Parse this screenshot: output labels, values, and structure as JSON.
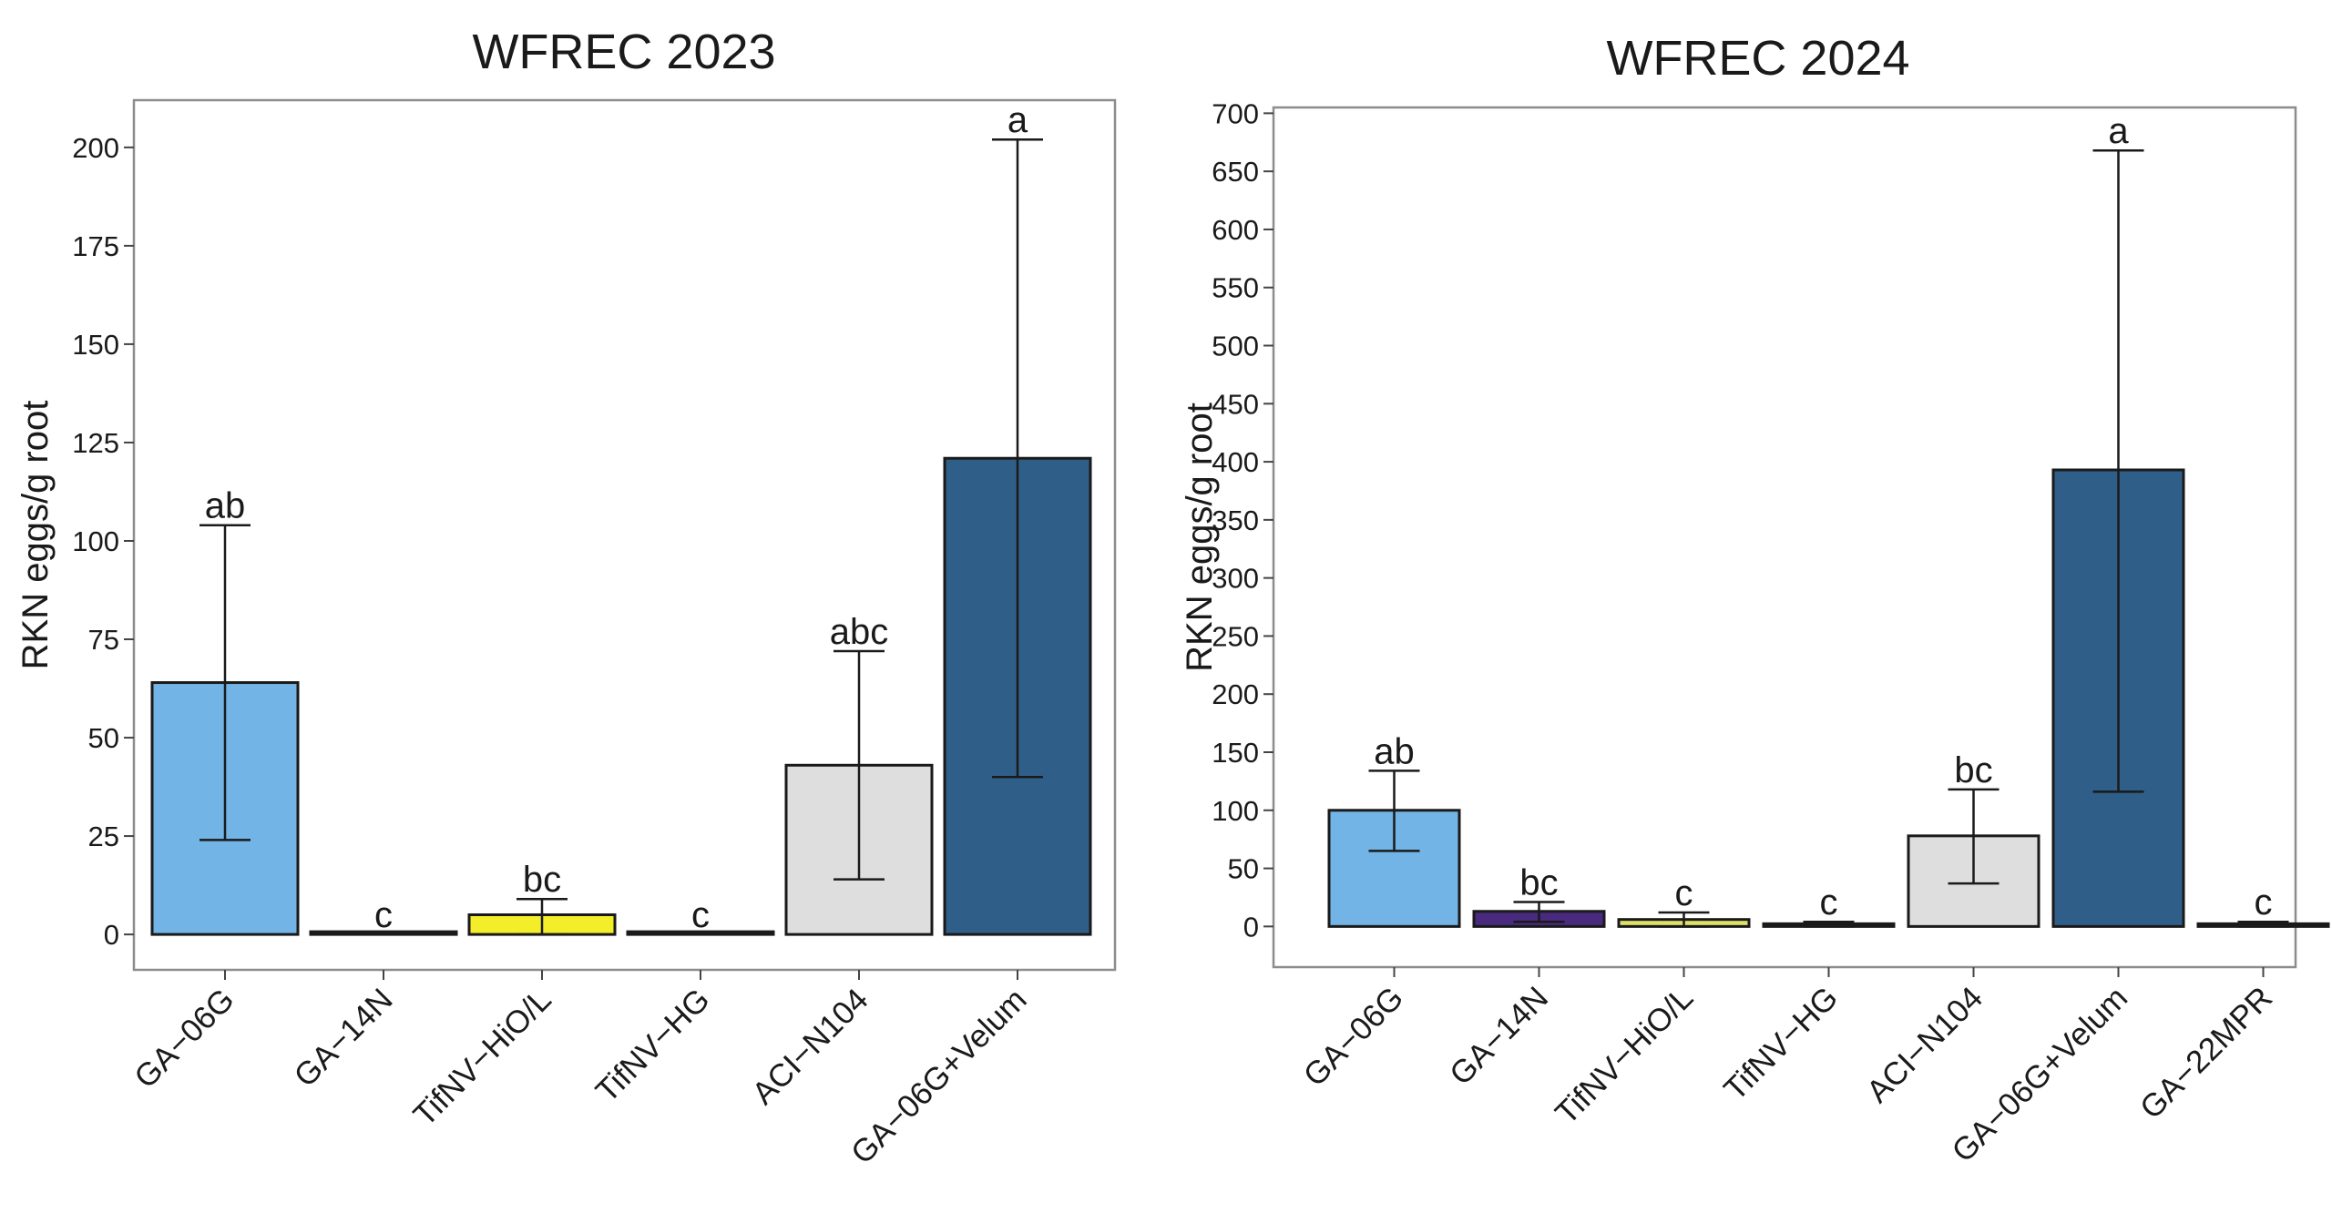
{
  "chart_data": [
    {
      "type": "bar",
      "title": "WFREC 2023",
      "xlabel": "",
      "ylabel": "RKN eggs/g root",
      "ylim": [
        -9,
        212
      ],
      "yticks": [
        0,
        25,
        50,
        75,
        100,
        125,
        150,
        175,
        200
      ],
      "grid": false,
      "categories": [
        "GA−06G",
        "GA−14N",
        "TifNV−HiO/L",
        "TifNV−HG",
        "ACI−N104",
        "GA−06G+Velum"
      ],
      "values": [
        64,
        0,
        5,
        0,
        43,
        121
      ],
      "error_low": [
        24,
        0,
        0,
        0,
        14,
        40
      ],
      "error_high": [
        104,
        0,
        9,
        0,
        72,
        202
      ],
      "significance": [
        "ab",
        "c",
        "bc",
        "c",
        "abc",
        "a"
      ],
      "colors": [
        "#72b4e6",
        "#9a9a9a",
        "#f4ee2a",
        "#9a9a9a",
        "#dedede",
        "#2f5f89"
      ]
    },
    {
      "type": "bar",
      "title": "WFREC 2024",
      "xlabel": "",
      "ylabel": "RKN eggs/g root",
      "ylim": [
        -35,
        705
      ],
      "yticks": [
        0,
        50,
        100,
        150,
        200,
        250,
        300,
        350,
        400,
        450,
        500,
        550,
        600,
        650,
        700
      ],
      "grid": false,
      "categories": [
        "GA−06G",
        "GA−14N",
        "TifNV−HiO/L",
        "TifNV−HG",
        "ACI−N104",
        "GA−06G+Velum",
        "GA−22MPR"
      ],
      "values": [
        100,
        13,
        6,
        2,
        78,
        393,
        2
      ],
      "error_low": [
        65,
        4,
        0,
        0,
        37,
        116,
        0
      ],
      "error_high": [
        134,
        21,
        12,
        4,
        118,
        668,
        4
      ],
      "significance": [
        "ab",
        "bc",
        "c",
        "c",
        "bc",
        "a",
        "c"
      ],
      "colors": [
        "#72b4e6",
        "#4a2a7e",
        "#dfe06a",
        "#6a6a6a",
        "#dedede",
        "#2f5f89",
        "#6a6a6a"
      ]
    }
  ]
}
